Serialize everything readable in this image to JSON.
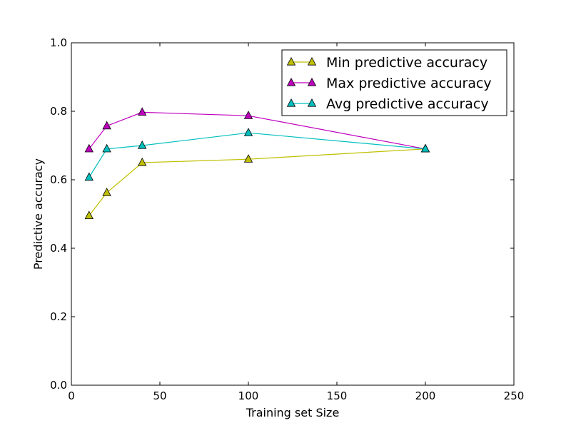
{
  "chart_data": {
    "type": "line",
    "title": "",
    "xlabel": "Training set Size",
    "ylabel": "Predictive accuracy",
    "xlim": [
      0,
      250
    ],
    "ylim": [
      0.0,
      1.0
    ],
    "xticks": [
      0,
      50,
      100,
      150,
      200,
      250
    ],
    "xtick_labels": [
      "0",
      "50",
      "100",
      "150",
      "200",
      "250"
    ],
    "yticks": [
      0.0,
      0.2,
      0.4,
      0.6,
      0.8,
      1.0
    ],
    "ytick_labels": [
      "0.0",
      "0.2",
      "0.4",
      "0.6",
      "0.8",
      "1.0"
    ],
    "grid": false,
    "legend_position": "top-right",
    "marker": "triangle-up",
    "x": [
      10,
      20,
      40,
      100,
      200
    ],
    "series": [
      {
        "name": "Min predictive accuracy",
        "color": "#bfbf00",
        "values": [
          0.495,
          0.562,
          0.65,
          0.66,
          0.69
        ]
      },
      {
        "name": "Max predictive accuracy",
        "color": "#bf00bf",
        "values": [
          0.69,
          0.757,
          0.797,
          0.787,
          0.69
        ]
      },
      {
        "name": "Avg predictive accuracy",
        "color": "#00bfbf",
        "values": [
          0.607,
          0.69,
          0.7,
          0.737,
          0.69
        ]
      }
    ]
  }
}
